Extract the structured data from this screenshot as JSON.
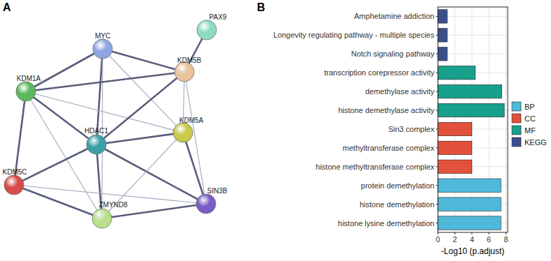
{
  "panels": [
    "A",
    "B"
  ],
  "network": {
    "nodes": [
      {
        "label": "MYC",
        "color": "#8ea6e2"
      },
      {
        "label": "PAX9",
        "color": "#8fdcc4"
      },
      {
        "label": "KDM5B",
        "color": "#e8c39c"
      },
      {
        "label": "KDM1A",
        "color": "#5cb85c"
      },
      {
        "label": "KDM5A",
        "color": "#c9c94c"
      },
      {
        "label": "HDAC1",
        "color": "#3c9fa8"
      },
      {
        "label": "KDM5C",
        "color": "#d94a4a"
      },
      {
        "label": "SIN3B",
        "color": "#7a5cc9"
      },
      {
        "label": "ZMYND8",
        "color": "#b9e08c"
      }
    ],
    "edges": [
      {
        "source": "PAX9",
        "target": "KDM5B",
        "weight": "high"
      },
      {
        "source": "MYC",
        "target": "KDM5B",
        "weight": "high"
      },
      {
        "source": "MYC",
        "target": "KDM1A",
        "weight": "high"
      },
      {
        "source": "MYC",
        "target": "HDAC1",
        "weight": "high"
      },
      {
        "source": "MYC",
        "target": "KDM5A",
        "weight": "low"
      },
      {
        "source": "MYC",
        "target": "ZMYND8",
        "weight": "low"
      },
      {
        "source": "KDM1A",
        "target": "KDM5B",
        "weight": "high"
      },
      {
        "source": "KDM1A",
        "target": "HDAC1",
        "weight": "high"
      },
      {
        "source": "KDM1A",
        "target": "KDM5C",
        "weight": "high"
      },
      {
        "source": "KDM1A",
        "target": "ZMYND8",
        "weight": "low"
      },
      {
        "source": "KDM1A",
        "target": "KDM5A",
        "weight": "low"
      },
      {
        "source": "KDM5B",
        "target": "HDAC1",
        "weight": "high"
      },
      {
        "source": "KDM5B",
        "target": "KDM5A",
        "weight": "low"
      },
      {
        "source": "KDM5B",
        "target": "SIN3B",
        "weight": "low"
      },
      {
        "source": "HDAC1",
        "target": "KDM5A",
        "weight": "high"
      },
      {
        "source": "HDAC1",
        "target": "SIN3B",
        "weight": "high"
      },
      {
        "source": "HDAC1",
        "target": "KDM5C",
        "weight": "high"
      },
      {
        "source": "HDAC1",
        "target": "ZMYND8",
        "weight": "high"
      },
      {
        "source": "KDM5A",
        "target": "SIN3B",
        "weight": "high"
      },
      {
        "source": "KDM5A",
        "target": "ZMYND8",
        "weight": "low"
      },
      {
        "source": "KDM5C",
        "target": "ZMYND8",
        "weight": "high"
      },
      {
        "source": "KDM5C",
        "target": "SIN3B",
        "weight": "low"
      },
      {
        "source": "ZMYND8",
        "target": "SIN3B",
        "weight": "high"
      }
    ]
  },
  "chart_data": {
    "type": "bar",
    "orientation": "horizontal",
    "categories": [
      "Amphetamine addiction",
      "Longevity regulating pathway - multiple species",
      "Notch signaling pathway",
      "transcription corepressor activity",
      "demethylase activity",
      "histone demethylase activity",
      "Sin3 complex",
      "methyltransferase complex",
      "histone methyltransferase complex",
      "protein demethylation",
      "histone demethylation",
      "histone lysine demethylation"
    ],
    "series": [
      {
        "name": "BP",
        "color": "#4fb9da",
        "values": [
          null,
          null,
          null,
          null,
          null,
          null,
          null,
          null,
          null,
          7.4,
          7.4,
          7.4
        ]
      },
      {
        "name": "CC",
        "color": "#e2513c",
        "values": [
          null,
          null,
          null,
          null,
          null,
          null,
          4.0,
          4.0,
          4.0,
          null,
          null,
          null
        ]
      },
      {
        "name": "MF",
        "color": "#17a08b",
        "values": [
          null,
          null,
          null,
          4.4,
          7.5,
          7.8,
          null,
          null,
          null,
          null,
          null,
          null
        ]
      },
      {
        "name": "KEGG",
        "color": "#3b4f8c",
        "values": [
          1.1,
          1.1,
          1.1,
          null,
          null,
          null,
          null,
          null,
          null,
          null,
          null,
          null
        ]
      }
    ],
    "xlabel": "-Log10 (p.adjust)",
    "xlim": [
      0,
      8.2
    ],
    "xticks": [
      0,
      2,
      4,
      6,
      8
    ],
    "grid": true,
    "legend": "right"
  }
}
